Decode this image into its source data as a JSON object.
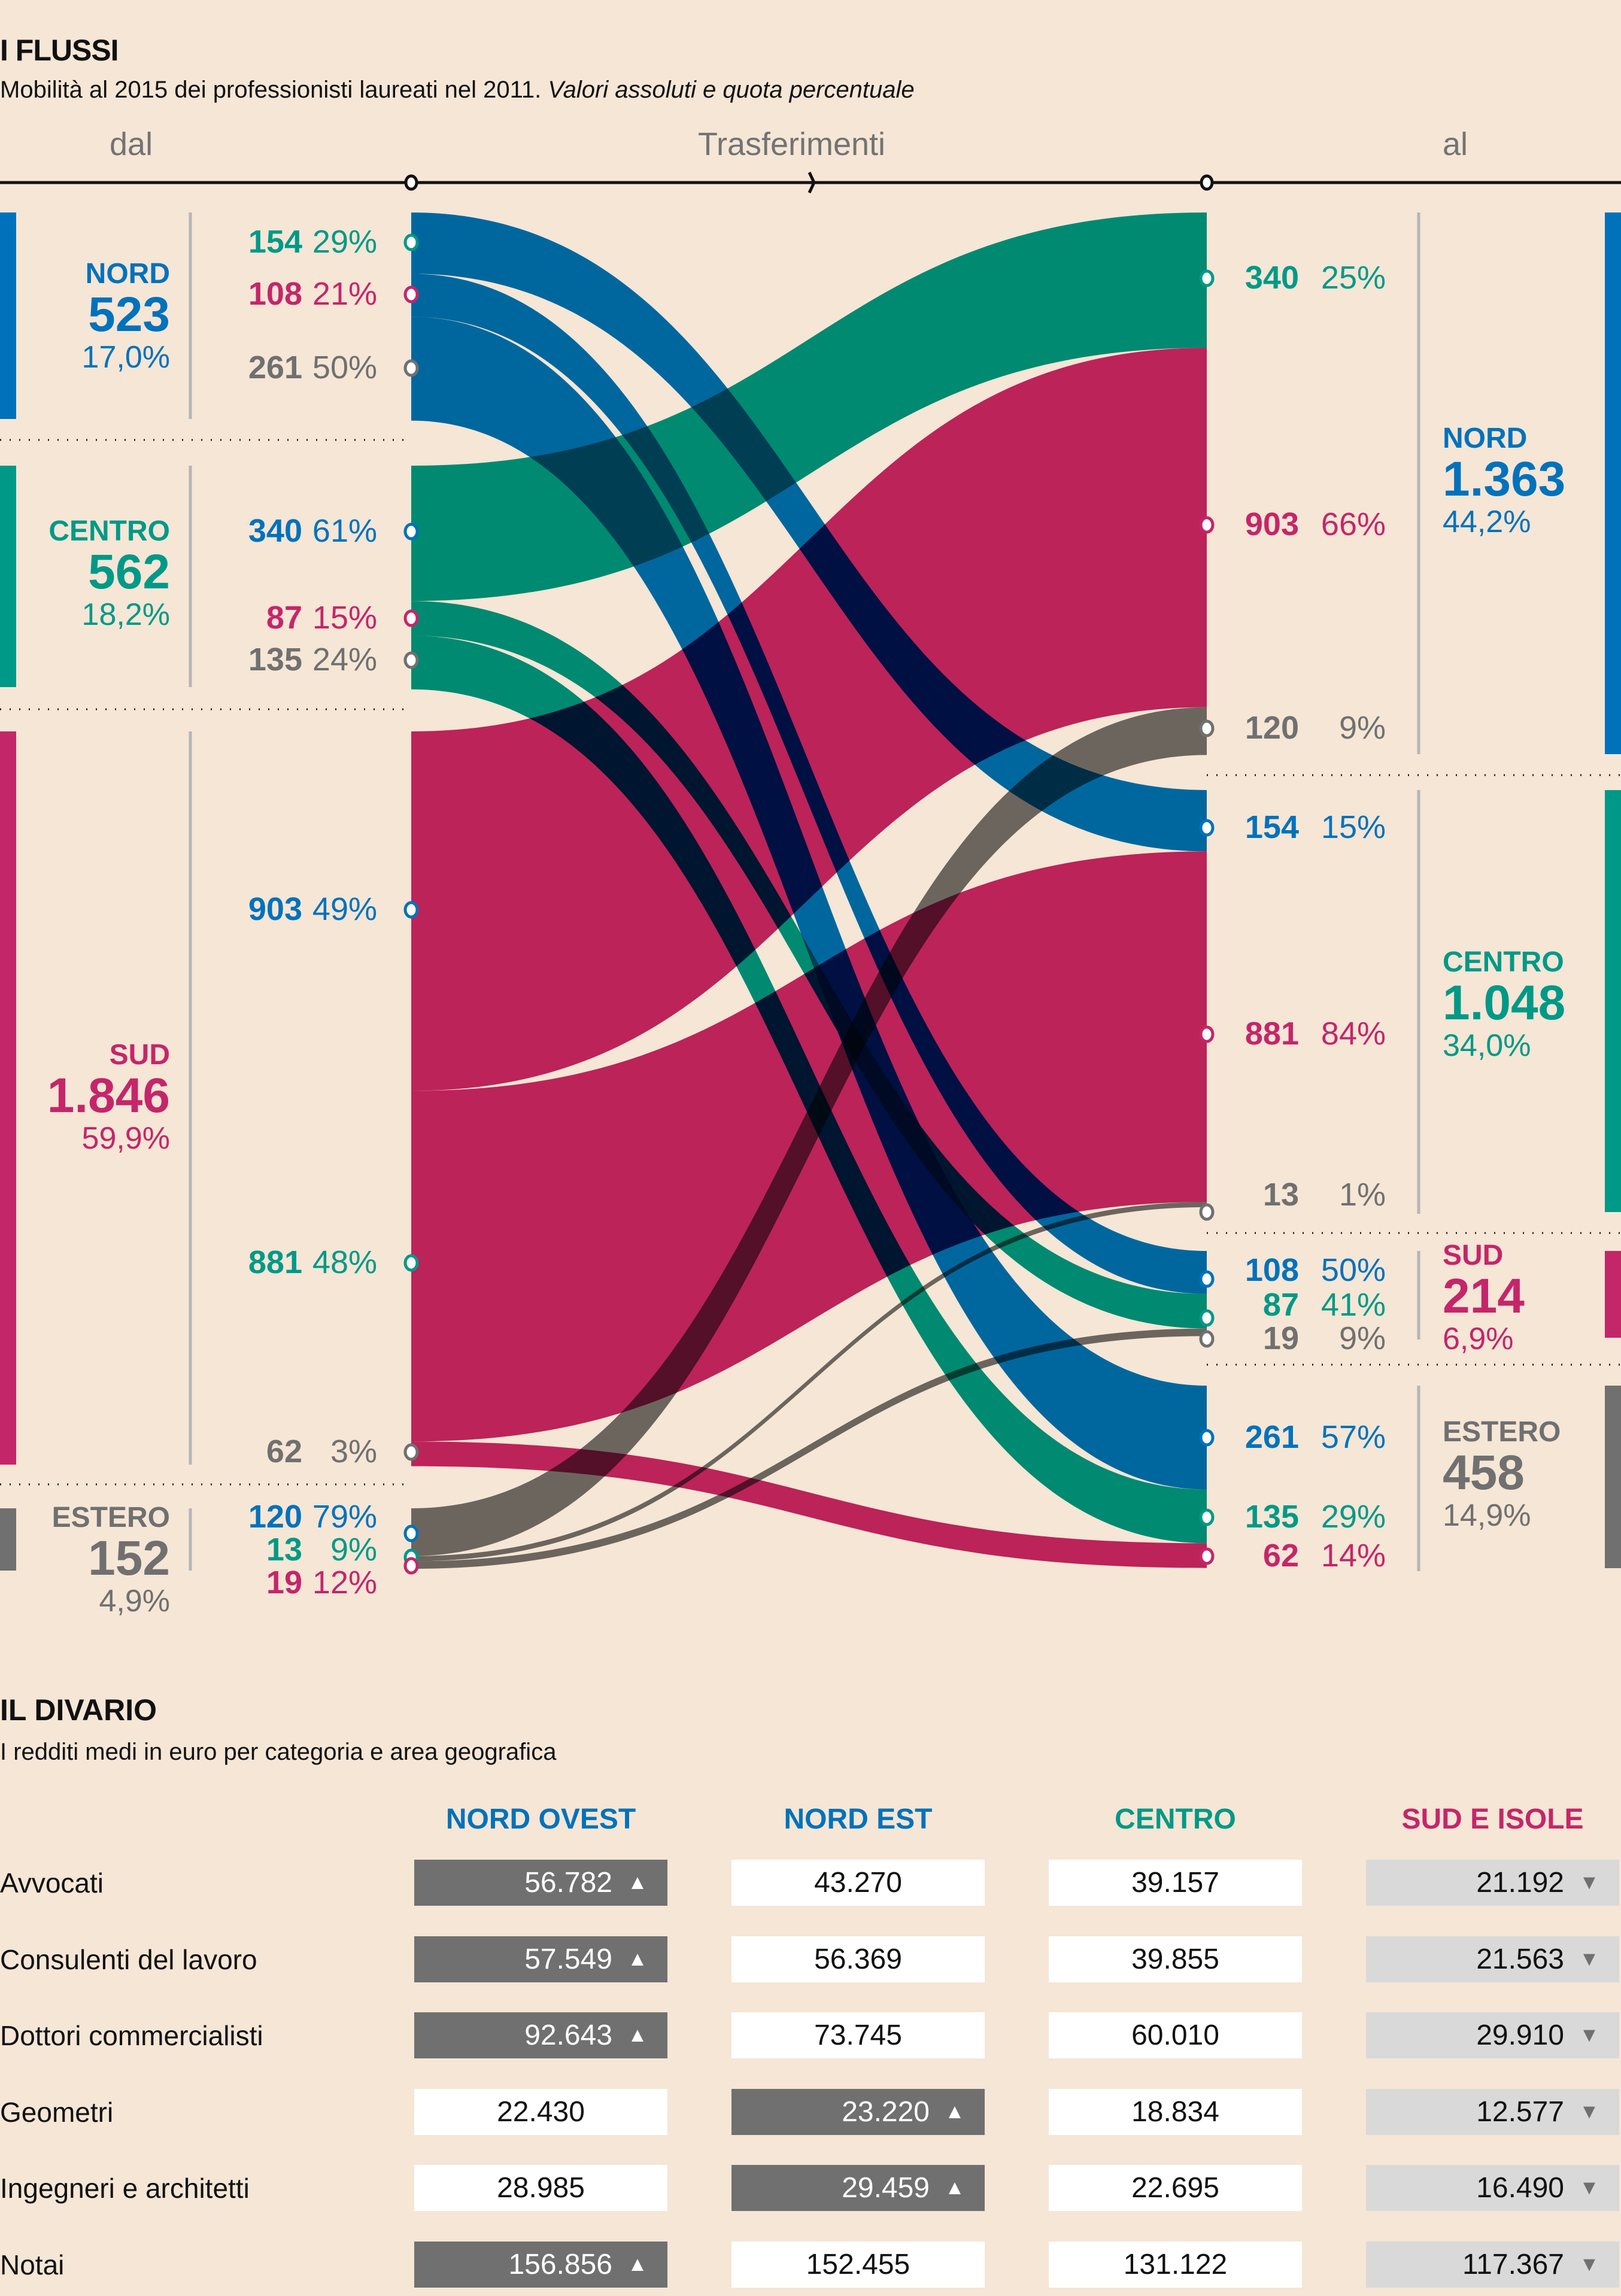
{
  "flows_section": {
    "title": "I FLUSSI",
    "subtitle_plain": "Mobilità al 2015 dei professionisti laureati nel 2011. ",
    "subtitle_italic": "Valori assoluti e quota percentuale",
    "axis": {
      "from_label": "dal",
      "middle_label": "Trasferimenti",
      "to_label": "al"
    }
  },
  "colors": {
    "nord": "#0072bc",
    "centro": "#009987",
    "sud": "#c4266a",
    "estero": "#707070",
    "background": "#f5e6d6"
  },
  "chart_data": [
    {
      "type": "sankey",
      "title": "I FLUSSI",
      "subtitle": "Mobilità al 2015 dei professionisti laureati nel 2011. Valori assoluti e quota percentuale",
      "source_nodes": [
        {
          "id": "nord",
          "name": "NORD",
          "total": "523",
          "share": "17,0%",
          "value": 523
        },
        {
          "id": "centro",
          "name": "CENTRO",
          "total": "562",
          "share": "18,2%",
          "value": 562
        },
        {
          "id": "sud",
          "name": "SUD",
          "total": "1.846",
          "share": "59,9%",
          "value": 1846
        },
        {
          "id": "estero",
          "name": "ESTERO",
          "total": "152",
          "share": "4,9%",
          "value": 152
        }
      ],
      "target_nodes": [
        {
          "id": "nord",
          "name": "NORD",
          "total": "1.363",
          "share": "44,2%",
          "value": 1363
        },
        {
          "id": "centro",
          "name": "CENTRO",
          "total": "1.048",
          "share": "34,0%",
          "value": 1048
        },
        {
          "id": "sud",
          "name": "SUD",
          "total": "214",
          "share": "6,9%",
          "value": 214
        },
        {
          "id": "estero",
          "name": "ESTERO",
          "total": "458",
          "share": "14,9%",
          "value": 458
        }
      ],
      "links": [
        {
          "from": "nord",
          "to": "centro",
          "value": 154,
          "from_pct": "29%",
          "to_pct": "15%"
        },
        {
          "from": "nord",
          "to": "sud",
          "value": 108,
          "from_pct": "21%",
          "to_pct": "50%"
        },
        {
          "from": "nord",
          "to": "estero",
          "value": 261,
          "from_pct": "50%",
          "to_pct": "57%"
        },
        {
          "from": "centro",
          "to": "nord",
          "value": 340,
          "from_pct": "61%",
          "to_pct": "25%"
        },
        {
          "from": "centro",
          "to": "sud",
          "value": 87,
          "from_pct": "15%",
          "to_pct": "41%"
        },
        {
          "from": "centro",
          "to": "estero",
          "value": 135,
          "from_pct": "24%",
          "to_pct": "29%"
        },
        {
          "from": "sud",
          "to": "nord",
          "value": 903,
          "from_pct": "49%",
          "to_pct": "66%"
        },
        {
          "from": "sud",
          "to": "centro",
          "value": 881,
          "from_pct": "48%",
          "to_pct": "84%"
        },
        {
          "from": "sud",
          "to": "estero",
          "value": 62,
          "from_pct": "3%",
          "to_pct": "14%"
        },
        {
          "from": "estero",
          "to": "nord",
          "value": 120,
          "from_pct": "79%",
          "to_pct": "9%"
        },
        {
          "from": "estero",
          "to": "centro",
          "value": 13,
          "from_pct": "9%",
          "to_pct": "1%"
        },
        {
          "from": "estero",
          "to": "sud",
          "value": 19,
          "from_pct": "12%",
          "to_pct": "9%"
        }
      ]
    },
    {
      "type": "table",
      "title": "IL DIVARIO",
      "subtitle": "I redditi medi in euro per categoria e area geografica",
      "columns": [
        "NORD OVEST",
        "NORD EST",
        "CENTRO",
        "SUD E ISOLE"
      ],
      "rows": [
        {
          "label": "Avvocati",
          "values": [
            "56.782",
            "43.270",
            "39.157",
            "21.192"
          ],
          "max_col": 0
        },
        {
          "label": "Consulenti del lavoro",
          "values": [
            "57.549",
            "56.369",
            "39.855",
            "21.563"
          ],
          "max_col": 0
        },
        {
          "label": "Dottori commercialisti",
          "values": [
            "92.643",
            "73.745",
            "60.010",
            "29.910"
          ],
          "max_col": 0
        },
        {
          "label": "Geometri",
          "values": [
            "22.430",
            "23.220",
            "18.834",
            "12.577"
          ],
          "max_col": 1
        },
        {
          "label": "Ingegneri e architetti",
          "values": [
            "28.985",
            "29.459",
            "22.695",
            "16.490"
          ],
          "max_col": 1
        },
        {
          "label": "Notai",
          "values": [
            "156.856",
            "152.455",
            "131.122",
            "117.367"
          ],
          "max_col": 0
        }
      ],
      "min_col": 3
    }
  ],
  "table_section": {
    "title": "IL DIVARIO",
    "subtitle": "I redditi medi in euro per categoria e area geografica",
    "column_colors": [
      "#0072bc",
      "#0072bc",
      "#009987",
      "#c4266a"
    ],
    "up_icon": "chevron-up-icon",
    "down_icon": "chevron-down-icon"
  }
}
